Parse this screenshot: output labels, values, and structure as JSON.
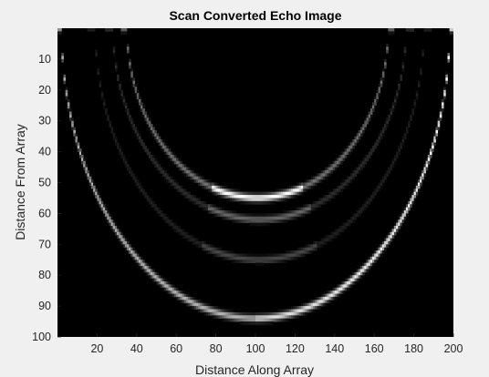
{
  "chart_data": {
    "type": "heatmap",
    "title": "Scan Converted Echo Image",
    "xlabel": "Distance Along Array",
    "ylabel": "Distance From Array",
    "xlim": [
      0,
      200
    ],
    "ylim": [
      0,
      100
    ],
    "y_reversed": true,
    "xticks": [
      20,
      40,
      60,
      80,
      100,
      120,
      140,
      160,
      180,
      200
    ],
    "yticks": [
      10,
      20,
      30,
      40,
      50,
      60,
      70,
      80,
      90,
      100
    ],
    "colormap": "gray",
    "background_color": "#000000",
    "features": [
      {
        "kind": "echo-arc",
        "center_x": 100,
        "half_width": 98,
        "y_top": 0,
        "y_bottom": 94,
        "peak_intensity": 1.0,
        "bright_side": "right"
      },
      {
        "kind": "echo-arc",
        "center_x": 102,
        "half_width": 83,
        "y_top": 0,
        "y_bottom": 75,
        "peak_intensity": 0.28
      },
      {
        "kind": "echo-arc",
        "center_x": 102,
        "half_width": 74,
        "y_top": 0,
        "y_bottom": 62,
        "peak_intensity": 0.4
      },
      {
        "kind": "echo-arc",
        "center_x": 101,
        "half_width": 66,
        "y_top": 0,
        "y_bottom": 55,
        "peak_intensity": 1.0
      }
    ]
  }
}
